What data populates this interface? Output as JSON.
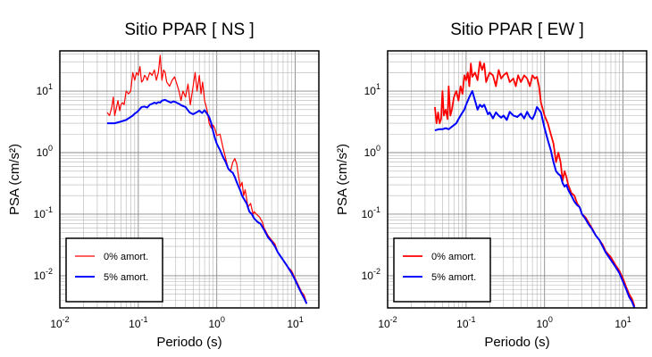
{
  "chart_data": [
    {
      "type": "line",
      "title": "Sitio PPAR [ NS ]",
      "xlabel": "Periodo (s)",
      "ylabel": "PSA (cm/s²)",
      "xscale": "log",
      "yscale": "log",
      "xlim": [
        0.01,
        20
      ],
      "ylim": [
        0.003,
        45
      ],
      "grid": true,
      "legend_position": "bottom-left",
      "x_ticks": [
        {
          "value": 0.01,
          "base": "10",
          "exp": "-2"
        },
        {
          "value": 0.1,
          "base": "10",
          "exp": "-1"
        },
        {
          "value": 1,
          "base": "10",
          "exp": "0"
        },
        {
          "value": 10,
          "base": "10",
          "exp": "1"
        }
      ],
      "y_ticks": [
        {
          "value": 0.01,
          "base": "10",
          "exp": "-2"
        },
        {
          "value": 0.1,
          "base": "10",
          "exp": "-1"
        },
        {
          "value": 1,
          "base": "10",
          "exp": "0"
        },
        {
          "value": 10,
          "base": "10",
          "exp": "1"
        }
      ],
      "series": [
        {
          "name": "0% amort.",
          "color": "#ff0000",
          "width": 1.2,
          "x": [
            0.04,
            0.043,
            0.046,
            0.048,
            0.05,
            0.052,
            0.055,
            0.058,
            0.06,
            0.063,
            0.066,
            0.07,
            0.075,
            0.08,
            0.085,
            0.09,
            0.095,
            0.1,
            0.105,
            0.11,
            0.115,
            0.12,
            0.125,
            0.13,
            0.14,
            0.15,
            0.16,
            0.17,
            0.18,
            0.19,
            0.2,
            0.21,
            0.22,
            0.23,
            0.25,
            0.27,
            0.29,
            0.31,
            0.33,
            0.35,
            0.37,
            0.4,
            0.43,
            0.46,
            0.5,
            0.53,
            0.56,
            0.6,
            0.63,
            0.66,
            0.7,
            0.75,
            0.8,
            0.85,
            0.9,
            0.95,
            1.0,
            1.1,
            1.2,
            1.3,
            1.4,
            1.5,
            1.6,
            1.7,
            1.8,
            1.9,
            2.0,
            2.1,
            2.2,
            2.3,
            2.5,
            2.7,
            2.9,
            3.0,
            3.2,
            3.5,
            3.8,
            4.0,
            4.5,
            5.0,
            5.5,
            6.0,
            7.0,
            8.0,
            9.0,
            10.0,
            11.0,
            12.0,
            13.0,
            14.0
          ],
          "y": [
            4.5,
            4.0,
            5.5,
            8.0,
            4.0,
            5.0,
            7.0,
            4.8,
            6.0,
            6.5,
            6.0,
            10.0,
            9.0,
            10.0,
            20.0,
            15.0,
            20.0,
            18.0,
            25.0,
            14.0,
            15.0,
            18.0,
            17.0,
            15.0,
            20.0,
            18.0,
            22.0,
            15.0,
            20.0,
            38.0,
            15.0,
            22.0,
            20.0,
            14.0,
            12.0,
            15.0,
            17.0,
            13.0,
            10.0,
            7.0,
            10.0,
            8.0,
            13.0,
            6.0,
            12.0,
            20.0,
            10.0,
            18.0,
            9.0,
            14.0,
            7.0,
            5.0,
            3.0,
            2.5,
            2.8,
            2.4,
            1.9,
            2.0,
            1.2,
            0.8,
            0.55,
            0.5,
            0.7,
            0.8,
            0.65,
            0.4,
            0.28,
            0.33,
            0.2,
            0.25,
            0.13,
            0.15,
            0.1,
            0.11,
            0.1,
            0.09,
            0.075,
            0.06,
            0.045,
            0.038,
            0.033,
            0.024,
            0.018,
            0.014,
            0.012,
            0.009,
            0.007,
            0.0055,
            0.0048,
            0.0036
          ]
        },
        {
          "name": "5% amort.",
          "color": "#0000ff",
          "width": 2.0,
          "x": [
            0.04,
            0.045,
            0.05,
            0.055,
            0.06,
            0.065,
            0.07,
            0.075,
            0.08,
            0.085,
            0.09,
            0.095,
            0.1,
            0.11,
            0.12,
            0.13,
            0.14,
            0.15,
            0.16,
            0.17,
            0.18,
            0.19,
            0.2,
            0.22,
            0.24,
            0.26,
            0.28,
            0.3,
            0.33,
            0.36,
            0.4,
            0.45,
            0.5,
            0.55,
            0.6,
            0.65,
            0.7,
            0.75,
            0.8,
            0.85,
            0.9,
            0.95,
            1.0,
            1.1,
            1.2,
            1.3,
            1.4,
            1.5,
            1.6,
            1.7,
            1.8,
            1.9,
            2.0,
            2.1,
            2.2,
            2.4,
            2.6,
            2.8,
            3.0,
            3.3,
            3.6,
            4.0,
            4.5,
            5.0,
            5.5,
            6.0,
            7.0,
            8.0,
            9.0,
            10.0,
            11.0,
            12.0,
            13.0,
            14.0
          ],
          "y": [
            3.0,
            3.0,
            3.0,
            3.1,
            3.2,
            3.3,
            3.4,
            3.6,
            3.8,
            4.0,
            4.3,
            4.5,
            4.8,
            5.5,
            5.6,
            5.4,
            6.0,
            6.2,
            6.5,
            6.3,
            6.6,
            6.5,
            7.0,
            7.2,
            6.8,
            6.5,
            6.8,
            6.6,
            6.2,
            5.8,
            5.5,
            4.5,
            4.2,
            4.5,
            4.8,
            4.4,
            4.9,
            4.3,
            3.8,
            3.0,
            2.2,
            1.7,
            1.4,
            1.1,
            0.85,
            0.7,
            0.55,
            0.5,
            0.47,
            0.4,
            0.33,
            0.28,
            0.24,
            0.2,
            0.18,
            0.15,
            0.11,
            0.1,
            0.085,
            0.075,
            0.07,
            0.056,
            0.042,
            0.036,
            0.03,
            0.024,
            0.018,
            0.014,
            0.011,
            0.0085,
            0.0065,
            0.0052,
            0.0043,
            0.0035
          ]
        }
      ]
    },
    {
      "type": "line",
      "title": "Sitio PPAR [ EW ]",
      "xlabel": "Periodo (s)",
      "ylabel": "PSA (cm/s²)",
      "xscale": "log",
      "yscale": "log",
      "xlim": [
        0.01,
        20
      ],
      "ylim": [
        0.003,
        45
      ],
      "grid": true,
      "legend_position": "bottom-left",
      "x_ticks": [
        {
          "value": 0.01,
          "base": "10",
          "exp": "-2"
        },
        {
          "value": 0.1,
          "base": "10",
          "exp": "-1"
        },
        {
          "value": 1,
          "base": "10",
          "exp": "0"
        },
        {
          "value": 10,
          "base": "10",
          "exp": "1"
        }
      ],
      "y_ticks": [
        {
          "value": 0.01,
          "base": "10",
          "exp": "-2"
        },
        {
          "value": 0.1,
          "base": "10",
          "exp": "-1"
        },
        {
          "value": 1,
          "base": "10",
          "exp": "0"
        },
        {
          "value": 10,
          "base": "10",
          "exp": "1"
        }
      ],
      "series": [
        {
          "name": "0% amort.",
          "color": "#ff0000",
          "width": 1.8,
          "x": [
            0.04,
            0.042,
            0.044,
            0.046,
            0.048,
            0.05,
            0.052,
            0.055,
            0.058,
            0.06,
            0.063,
            0.066,
            0.07,
            0.075,
            0.08,
            0.085,
            0.09,
            0.095,
            0.1,
            0.105,
            0.11,
            0.115,
            0.12,
            0.13,
            0.14,
            0.15,
            0.16,
            0.17,
            0.18,
            0.19,
            0.2,
            0.22,
            0.24,
            0.26,
            0.28,
            0.3,
            0.33,
            0.36,
            0.4,
            0.43,
            0.46,
            0.5,
            0.55,
            0.6,
            0.65,
            0.7,
            0.75,
            0.8,
            0.85,
            0.9,
            1.0,
            1.1,
            1.2,
            1.3,
            1.4,
            1.5,
            1.6,
            1.7,
            1.8,
            1.9,
            2.0,
            2.2,
            2.4,
            2.6,
            2.8,
            3.0,
            3.3,
            3.6,
            4.0,
            4.5,
            5.0,
            5.5,
            6.0,
            7.0,
            8.0,
            9.0,
            10.0,
            11.0,
            12.0,
            13.0,
            14.0
          ],
          "y": [
            5.5,
            3.0,
            4.5,
            3.0,
            3.5,
            10.0,
            4.0,
            5.0,
            3.5,
            12.0,
            4.0,
            5.0,
            8.0,
            10.0,
            7.0,
            12.0,
            9.0,
            18.0,
            15.0,
            20.0,
            12.0,
            28.0,
            17.0,
            20.0,
            15.0,
            30.0,
            22.0,
            28.0,
            14.0,
            17.0,
            20.0,
            18.0,
            12.0,
            22.0,
            16.0,
            18.0,
            20.0,
            14.0,
            16.0,
            12.0,
            18.0,
            14.0,
            18.0,
            16.0,
            12.0,
            18.0,
            16.0,
            17.0,
            12.0,
            6.5,
            4.0,
            3.0,
            2.0,
            1.4,
            0.7,
            1.0,
            0.7,
            0.35,
            0.5,
            0.4,
            0.3,
            0.22,
            0.2,
            0.15,
            0.13,
            0.1,
            0.09,
            0.075,
            0.06,
            0.045,
            0.038,
            0.032,
            0.025,
            0.02,
            0.015,
            0.012,
            0.009,
            0.0065,
            0.005,
            0.0042,
            0.0032
          ]
        },
        {
          "name": "5% amort.",
          "color": "#0000ff",
          "width": 2.0,
          "x": [
            0.04,
            0.045,
            0.05,
            0.055,
            0.06,
            0.065,
            0.07,
            0.075,
            0.08,
            0.085,
            0.09,
            0.095,
            0.1,
            0.11,
            0.12,
            0.13,
            0.14,
            0.15,
            0.16,
            0.17,
            0.18,
            0.19,
            0.2,
            0.22,
            0.24,
            0.26,
            0.28,
            0.3,
            0.33,
            0.36,
            0.4,
            0.45,
            0.5,
            0.55,
            0.6,
            0.65,
            0.7,
            0.75,
            0.8,
            0.9,
            1.0,
            1.1,
            1.2,
            1.3,
            1.4,
            1.5,
            1.6,
            1.7,
            1.8,
            1.9,
            2.0,
            2.2,
            2.4,
            2.6,
            2.8,
            3.0,
            3.3,
            3.6,
            4.0,
            4.5,
            5.0,
            5.5,
            6.0,
            7.0,
            8.0,
            9.0,
            10.0,
            11.0,
            12.0,
            13.0,
            14.0
          ],
          "y": [
            2.3,
            2.4,
            2.4,
            2.5,
            2.4,
            2.6,
            2.8,
            3.0,
            3.5,
            4.0,
            4.5,
            5.0,
            6.0,
            8.0,
            10.0,
            7.0,
            5.0,
            6.0,
            5.5,
            6.0,
            5.0,
            4.2,
            4.5,
            3.6,
            4.5,
            4.0,
            3.7,
            4.0,
            3.4,
            4.6,
            4.0,
            3.8,
            4.3,
            3.6,
            4.6,
            3.8,
            3.5,
            4.2,
            5.5,
            4.5,
            2.5,
            1.6,
            1.1,
            0.7,
            0.5,
            0.45,
            0.42,
            0.32,
            0.28,
            0.3,
            0.25,
            0.2,
            0.16,
            0.14,
            0.13,
            0.1,
            0.085,
            0.07,
            0.058,
            0.045,
            0.038,
            0.03,
            0.024,
            0.018,
            0.014,
            0.011,
            0.008,
            0.006,
            0.0045,
            0.0038,
            0.003
          ]
        }
      ]
    }
  ]
}
